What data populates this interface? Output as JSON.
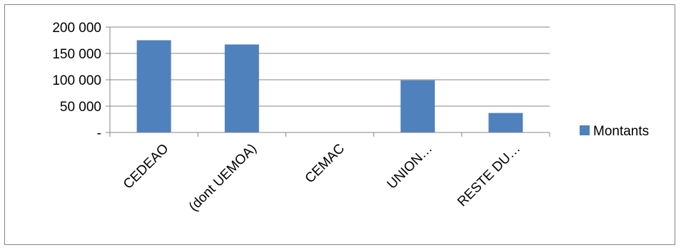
{
  "chart_data": {
    "type": "bar",
    "categories": [
      "CEDEAO",
      "(dont UEMOA)",
      "CEMAC",
      "UNION…",
      "RESTE DU…"
    ],
    "series": [
      {
        "name": "Montants",
        "values": [
          175000,
          167000,
          0,
          99000,
          37000
        ],
        "color": "#4f81bd"
      }
    ],
    "ylim": [
      0,
      200000
    ],
    "yticks": [
      0,
      50000,
      100000,
      150000,
      200000
    ],
    "ytick_labels": [
      "-",
      "50 000",
      "100 000",
      "150 000",
      "200 000"
    ],
    "grid": true,
    "legend_position": "right"
  }
}
